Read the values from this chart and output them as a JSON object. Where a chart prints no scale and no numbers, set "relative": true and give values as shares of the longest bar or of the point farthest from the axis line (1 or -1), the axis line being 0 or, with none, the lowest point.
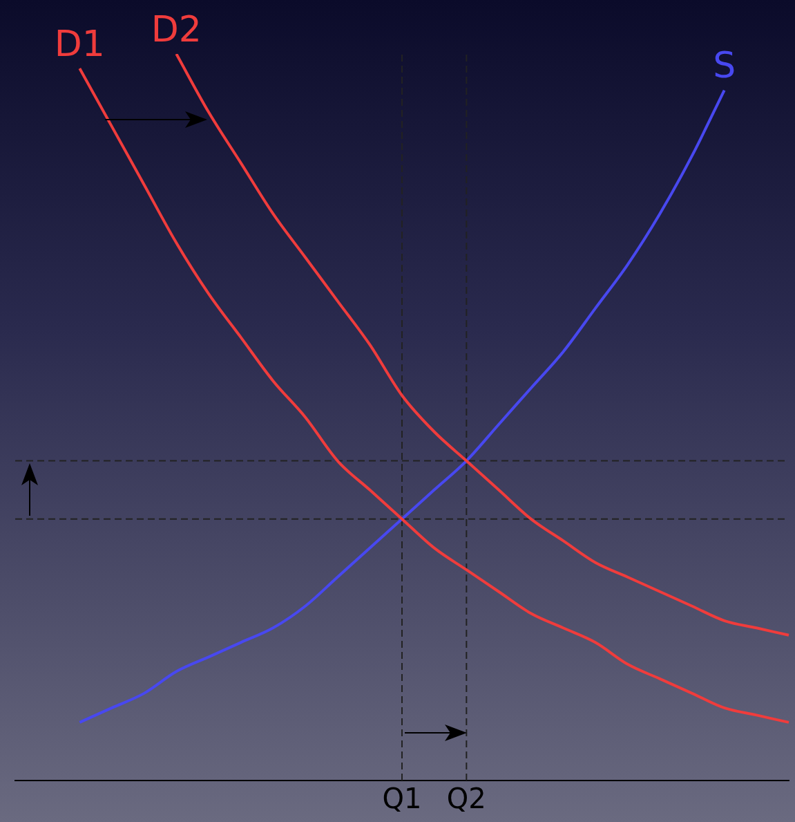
{
  "chart_data": {
    "type": "line",
    "relative": true,
    "categories": [
      null,
      null,
      null,
      null,
      null,
      null,
      null,
      null,
      null,
      null,
      null,
      null,
      "Q1",
      null,
      "Q2",
      null,
      null,
      null,
      null,
      null,
      null,
      null,
      null,
      null,
      null
    ],
    "series": [
      {
        "name": "D1",
        "color": "#f03c3c",
        "values": [
          null,
          null,
          0.98,
          0.9,
          0.82,
          0.74,
          0.67,
          0.61,
          0.55,
          0.5,
          0.44,
          0.4,
          0.36,
          0.32,
          0.29,
          0.26,
          0.23,
          0.21,
          0.19,
          0.16,
          0.14,
          0.12,
          0.1,
          0.09,
          0.08
        ]
      },
      {
        "name": "D2",
        "color": "#f03c3c",
        "values": [
          null,
          null,
          null,
          null,
          null,
          1,
          0.92,
          0.85,
          0.78,
          0.72,
          0.66,
          0.6,
          0.53,
          0.48,
          0.44,
          0.4,
          0.36,
          0.33,
          0.3,
          0.28,
          0.26,
          0.24,
          0.22,
          0.21,
          0.2
        ]
      },
      {
        "name": "S",
        "color": "#4848f0",
        "values": [
          null,
          null,
          0.08,
          0.1,
          0.12,
          0.15,
          0.17,
          0.19,
          0.21,
          0.24,
          0.28,
          0.32,
          0.36,
          0.4,
          0.44,
          0.49,
          0.54,
          0.59,
          0.65,
          0.71,
          0.78,
          0.86,
          0.95,
          null,
          null
        ]
      }
    ],
    "ref_lines": [
      {
        "axis": "x",
        "value": "Q1",
        "line_style": "dashed",
        "color": "#222222"
      },
      {
        "axis": "x",
        "value": "Q2",
        "line_style": "dashed",
        "color": "#222222"
      },
      {
        "axis": "y",
        "value": 0.36,
        "line_style": "dashed",
        "color": "#222222"
      },
      {
        "axis": "y",
        "value": 0.44,
        "line_style": "dashed",
        "color": "#222222"
      }
    ],
    "grid": false,
    "legend": false,
    "marker": "none",
    "line_style": "solid"
  }
}
